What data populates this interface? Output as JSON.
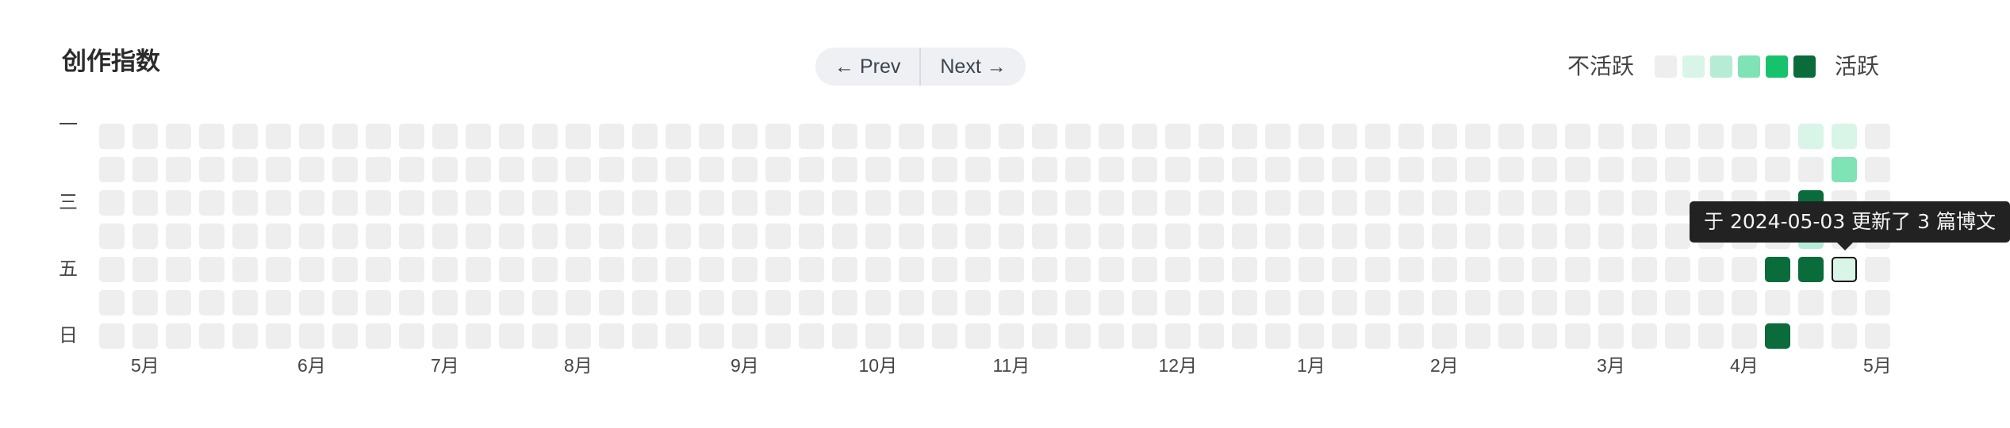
{
  "title": "创作指数",
  "pager": {
    "prev_label": "← Prev",
    "next_label": "Next →"
  },
  "legend": {
    "low_label": "不活跃",
    "high_label": "活跃",
    "level_colors": [
      "#eeeeee",
      "#d8f5e8",
      "#b6ecd5",
      "#7fe3b5",
      "#16c26c",
      "#0a6b3b"
    ]
  },
  "day_labels": [
    "一",
    "",
    "三",
    "",
    "五",
    "",
    "日"
  ],
  "month_labels": [
    {
      "label": "5月",
      "week": 1
    },
    {
      "label": "6月",
      "week": 6
    },
    {
      "label": "7月",
      "week": 10
    },
    {
      "label": "8月",
      "week": 14
    },
    {
      "label": "9月",
      "week": 19
    },
    {
      "label": "10月",
      "week": 23
    },
    {
      "label": "11月",
      "week": 27
    },
    {
      "label": "12月",
      "week": 32
    },
    {
      "label": "1月",
      "week": 36
    },
    {
      "label": "2月",
      "week": 40
    },
    {
      "label": "3月",
      "week": 45
    },
    {
      "label": "4月",
      "week": 49
    },
    {
      "label": "5月",
      "week": 53
    }
  ],
  "activity": {
    "weeks": 54,
    "days": 7,
    "levels": [
      {
        "week": 51,
        "day": 0,
        "level": 1
      },
      {
        "week": 52,
        "day": 0,
        "level": 1
      },
      {
        "week": 52,
        "day": 1,
        "level": 3
      },
      {
        "week": 51,
        "day": 2,
        "level": 5
      },
      {
        "week": 51,
        "day": 3,
        "level": 2
      },
      {
        "week": 50,
        "day": 4,
        "level": 5
      },
      {
        "week": 51,
        "day": 4,
        "level": 5
      },
      {
        "week": 52,
        "day": 4,
        "level": 1
      },
      {
        "week": 50,
        "day": 6,
        "level": 5
      }
    ],
    "selected": {
      "week": 52,
      "day": 4
    }
  },
  "tooltip": {
    "text": "于 2024-05-03 更新了 3 篇博文"
  }
}
